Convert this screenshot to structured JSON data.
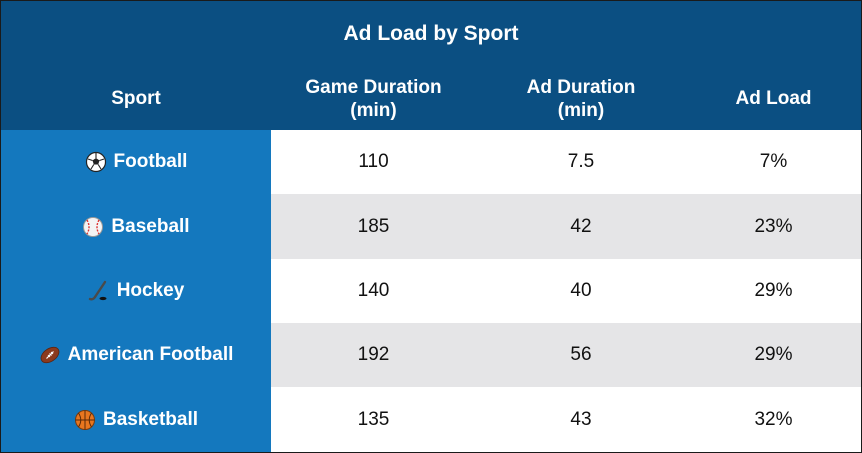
{
  "chart_data": {
    "type": "table",
    "title": "Ad Load by Sport",
    "columns": [
      "Sport",
      "Game Duration\n(min)",
      "Ad Duration\n(min)",
      "Ad Load"
    ],
    "rows": [
      {
        "icon": "soccer-ball-icon",
        "sport": "Football",
        "game_duration": "110",
        "ad_duration": "7.5",
        "ad_load": "7%"
      },
      {
        "icon": "baseball-icon",
        "sport": "Baseball",
        "game_duration": "185",
        "ad_duration": "42",
        "ad_load": "23%"
      },
      {
        "icon": "hockey-stick-icon",
        "sport": "Hockey",
        "game_duration": "140",
        "ad_duration": "40",
        "ad_load": "29%"
      },
      {
        "icon": "american-football-icon",
        "sport": "American Football",
        "game_duration": "192",
        "ad_duration": "56",
        "ad_load": "29%"
      },
      {
        "icon": "basketball-icon",
        "sport": "Basketball",
        "game_duration": "135",
        "ad_duration": "43",
        "ad_load": "32%"
      }
    ]
  },
  "colors": {
    "header_bg": "#0b4f82",
    "sport_col_bg": "#1478be",
    "row_alt_bg": "#e5e5e7",
    "row_bg": "#ffffff"
  }
}
